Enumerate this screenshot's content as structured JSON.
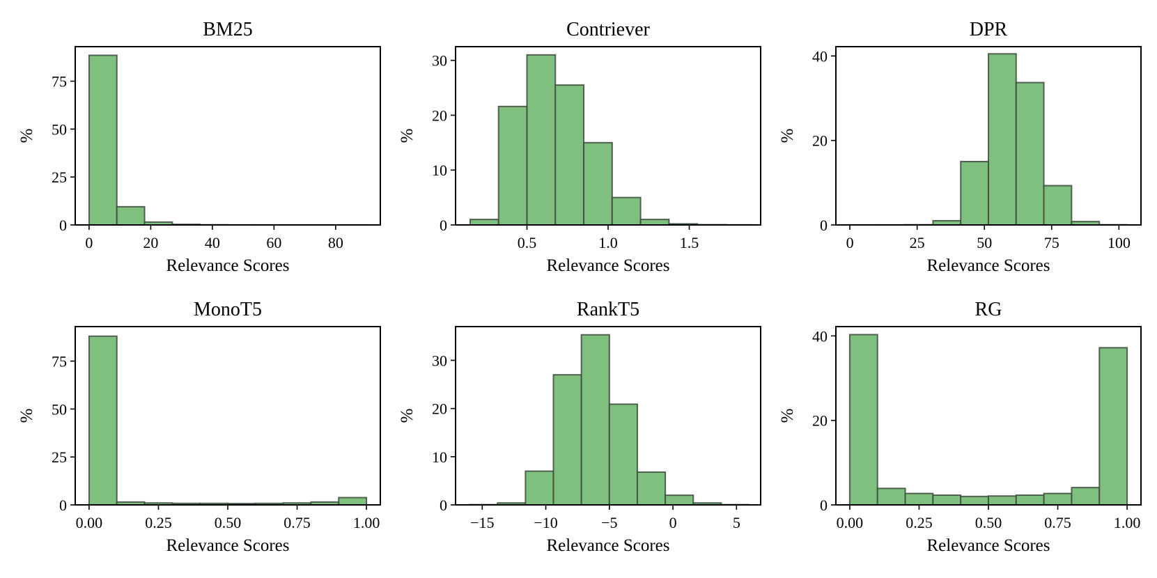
{
  "chart_data": [
    {
      "type": "bar",
      "title": "BM25",
      "xlabel": "Relevance Scores",
      "ylabel": "%",
      "xlim": [
        -4.5,
        94.5
      ],
      "ylim": [
        0,
        93
      ],
      "xticks": [
        0,
        20,
        40,
        60,
        80
      ],
      "xtick_labels": [
        "0",
        "20",
        "40",
        "60",
        "80"
      ],
      "yticks": [
        0,
        25,
        50,
        75
      ],
      "ytick_labels": [
        "0",
        "25",
        "50",
        "75"
      ],
      "bin_edges": [
        0,
        9,
        18,
        27,
        36,
        45,
        54,
        63,
        72,
        81,
        90
      ],
      "values": [
        88.5,
        9.5,
        1.5,
        0.3,
        0.1,
        0.05,
        0.03,
        0.02,
        0.01,
        0.01
      ]
    },
    {
      "type": "bar",
      "title": "Contriever",
      "xlabel": "Relevance Scores",
      "ylabel": "%",
      "xlim": [
        0.06,
        1.94
      ],
      "ylim": [
        0,
        32.5
      ],
      "xticks": [
        0.5,
        1.0,
        1.5
      ],
      "xtick_labels": [
        "0.5",
        "1.0",
        "1.5"
      ],
      "yticks": [
        0,
        10,
        20,
        30
      ],
      "ytick_labels": [
        "0",
        "10",
        "20",
        "30"
      ],
      "bin_edges": [
        0.15,
        0.325,
        0.5,
        0.675,
        0.85,
        1.025,
        1.2,
        1.375,
        1.55,
        1.725,
        1.9
      ],
      "values": [
        1.0,
        21.6,
        31.0,
        25.5,
        15.0,
        5.0,
        1.0,
        0.2,
        0.05,
        0.02
      ]
    },
    {
      "type": "bar",
      "title": "DPR",
      "xlabel": "Relevance Scores",
      "ylabel": "%",
      "xlim": [
        -5.2,
        108.2
      ],
      "ylim": [
        0,
        42.2
      ],
      "xticks": [
        0,
        25,
        50,
        75,
        100
      ],
      "xtick_labels": [
        "0",
        "25",
        "50",
        "75",
        "100"
      ],
      "yticks": [
        0,
        20,
        40
      ],
      "ytick_labels": [
        "0",
        "20",
        "40"
      ],
      "bin_edges": [
        0,
        10.3,
        20.6,
        30.9,
        41.2,
        51.5,
        61.8,
        72.1,
        82.4,
        92.7,
        103
      ],
      "values": [
        0.02,
        0.02,
        0.05,
        1.0,
        15.0,
        40.5,
        33.7,
        9.3,
        0.8,
        0.05
      ]
    },
    {
      "type": "bar",
      "title": "MonoT5",
      "xlabel": "Relevance Scores",
      "ylabel": "%",
      "xlim": [
        -0.05,
        1.05
      ],
      "ylim": [
        0,
        93
      ],
      "xticks": [
        0.0,
        0.25,
        0.5,
        0.75,
        1.0
      ],
      "xtick_labels": [
        "0.00",
        "0.25",
        "0.50",
        "0.75",
        "1.00"
      ],
      "yticks": [
        0,
        25,
        50,
        75
      ],
      "ytick_labels": [
        "0",
        "25",
        "50",
        "75"
      ],
      "bin_edges": [
        0,
        0.1,
        0.2,
        0.3,
        0.4,
        0.5,
        0.6,
        0.7,
        0.8,
        0.9,
        1.0
      ],
      "values": [
        88.0,
        1.5,
        1.0,
        0.8,
        0.8,
        0.7,
        0.8,
        1.0,
        1.5,
        3.8
      ]
    },
    {
      "type": "bar",
      "title": "RankT5",
      "xlabel": "Relevance Scores",
      "ylabel": "%",
      "xlim": [
        -17.1,
        6.9
      ],
      "ylim": [
        0,
        37.0
      ],
      "xticks": [
        -15,
        -10,
        -5,
        0,
        5
      ],
      "xtick_labels": [
        "−15",
        "−10",
        "−5",
        "0",
        "5"
      ],
      "yticks": [
        0,
        10,
        20,
        30
      ],
      "ytick_labels": [
        "0",
        "10",
        "20",
        "30"
      ],
      "bin_edges": [
        -16,
        -13.8,
        -11.6,
        -9.4,
        -7.2,
        -5.0,
        -2.8,
        -0.6,
        1.6,
        3.8,
        6.0
      ],
      "values": [
        0.05,
        0.4,
        7.0,
        27.0,
        35.3,
        20.9,
        6.8,
        2.0,
        0.4,
        0.05
      ]
    },
    {
      "type": "bar",
      "title": "RG",
      "xlabel": "Relevance Scores",
      "ylabel": "%",
      "xlim": [
        -0.05,
        1.05
      ],
      "ylim": [
        0,
        42.2
      ],
      "xticks": [
        0.0,
        0.25,
        0.5,
        0.75,
        1.0
      ],
      "xtick_labels": [
        "0.00",
        "0.25",
        "0.50",
        "0.75",
        "1.00"
      ],
      "yticks": [
        0,
        20,
        40
      ],
      "ytick_labels": [
        "0",
        "20",
        "40"
      ],
      "bin_edges": [
        0,
        0.1,
        0.2,
        0.3,
        0.4,
        0.5,
        0.6,
        0.7,
        0.8,
        0.9,
        1.0
      ],
      "values": [
        40.3,
        3.9,
        2.7,
        2.3,
        2.0,
        2.1,
        2.3,
        2.7,
        4.1,
        37.2
      ]
    }
  ]
}
